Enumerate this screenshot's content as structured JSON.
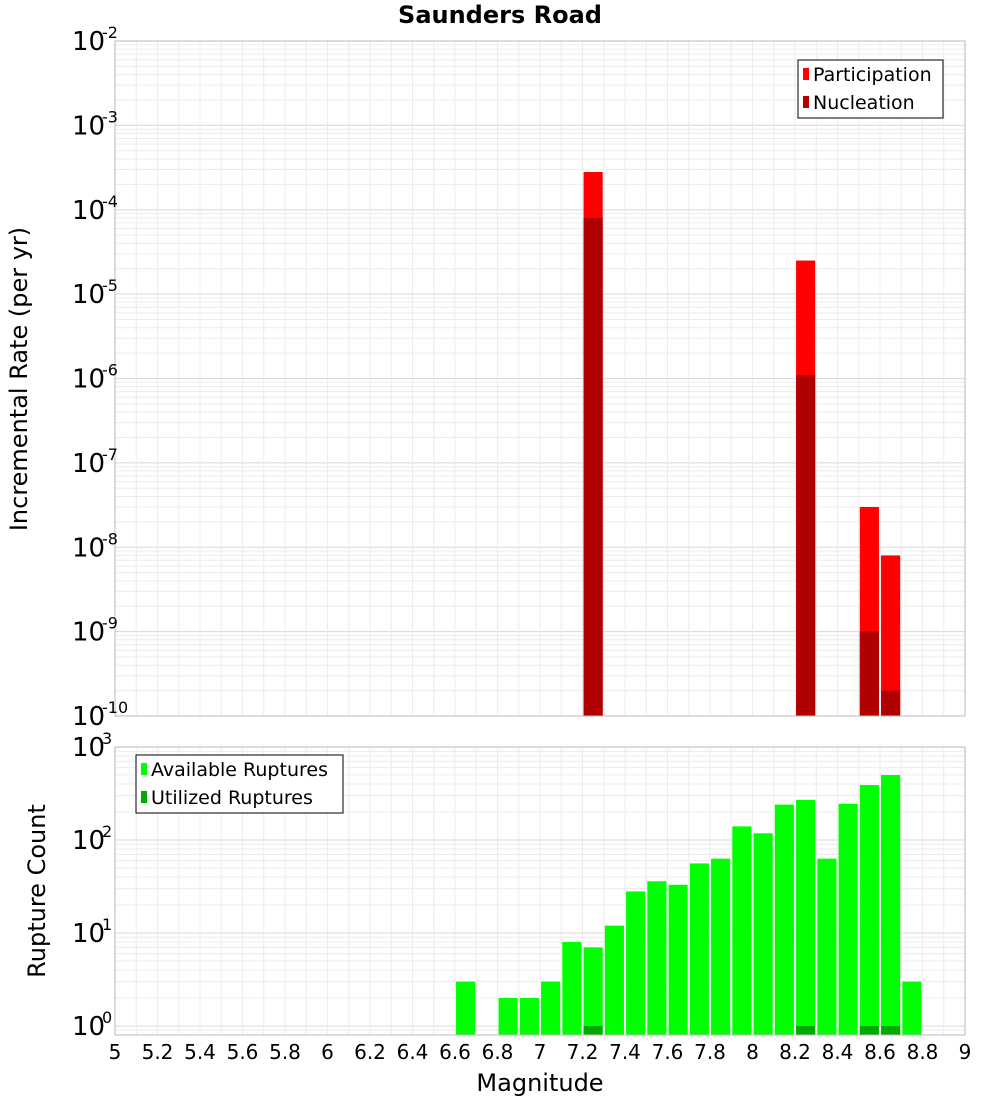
{
  "chart_data": {
    "title": "Saunders Road",
    "xlabel": "Magnitude",
    "xlim": [
      5,
      9
    ],
    "x_ticks": [
      "5",
      "5.2",
      "5.4",
      "5.6",
      "5.8",
      "6",
      "6.2",
      "6.4",
      "6.6",
      "6.8",
      "7",
      "7.2",
      "7.4",
      "7.6",
      "7.8",
      "8",
      "8.2",
      "8.4",
      "8.6",
      "8.8",
      "9"
    ],
    "grid": true,
    "panels": [
      {
        "type": "bar",
        "scale": "log",
        "ylabel": "Incremental Rate (per yr)",
        "ylim": [
          1e-10,
          0.01
        ],
        "y_tick_exponents": [
          "-10",
          "-9",
          "-8",
          "-7",
          "-6",
          "-5",
          "-4",
          "-3",
          "-2"
        ],
        "legend_position": "top-right",
        "series": [
          {
            "name": "Participation",
            "color": "#ff0000",
            "points": [
              [
                7.25,
                0.00028
              ],
              [
                8.25,
                2.5e-05
              ],
              [
                8.55,
                3e-08
              ],
              [
                8.65,
                8e-09
              ]
            ]
          },
          {
            "name": "Nucleation",
            "color": "#b00000",
            "points": [
              [
                7.25,
                8e-05
              ],
              [
                8.25,
                1.1e-06
              ],
              [
                8.55,
                1e-09
              ],
              [
                8.65,
                2e-10
              ]
            ]
          }
        ]
      },
      {
        "type": "bar",
        "scale": "log",
        "ylabel": "Rupture Count",
        "ylim": [
          0.8,
          1000
        ],
        "y_tick_exponents": [
          "0",
          "1",
          "2",
          "3"
        ],
        "legend_position": "top-left",
        "series": [
          {
            "name": "Available Ruptures",
            "color": "#00ff00",
            "points": [
              [
                6.65,
                3
              ],
              [
                6.85,
                2
              ],
              [
                6.95,
                2
              ],
              [
                7.05,
                3
              ],
              [
                7.15,
                8
              ],
              [
                7.25,
                7
              ],
              [
                7.35,
                12
              ],
              [
                7.45,
                28
              ],
              [
                7.55,
                36
              ],
              [
                7.65,
                33
              ],
              [
                7.75,
                56
              ],
              [
                7.85,
                63
              ],
              [
                7.95,
                140
              ],
              [
                8.05,
                118
              ],
              [
                8.15,
                240
              ],
              [
                8.25,
                270
              ],
              [
                8.35,
                63
              ],
              [
                8.45,
                245
              ],
              [
                8.55,
                390
              ],
              [
                8.65,
                500
              ],
              [
                8.75,
                3
              ]
            ]
          },
          {
            "name": "Utilized Ruptures",
            "color": "#00aa00",
            "points": [
              [
                7.25,
                1
              ],
              [
                8.25,
                1
              ],
              [
                8.55,
                1
              ],
              [
                8.65,
                1
              ]
            ]
          }
        ]
      }
    ]
  }
}
